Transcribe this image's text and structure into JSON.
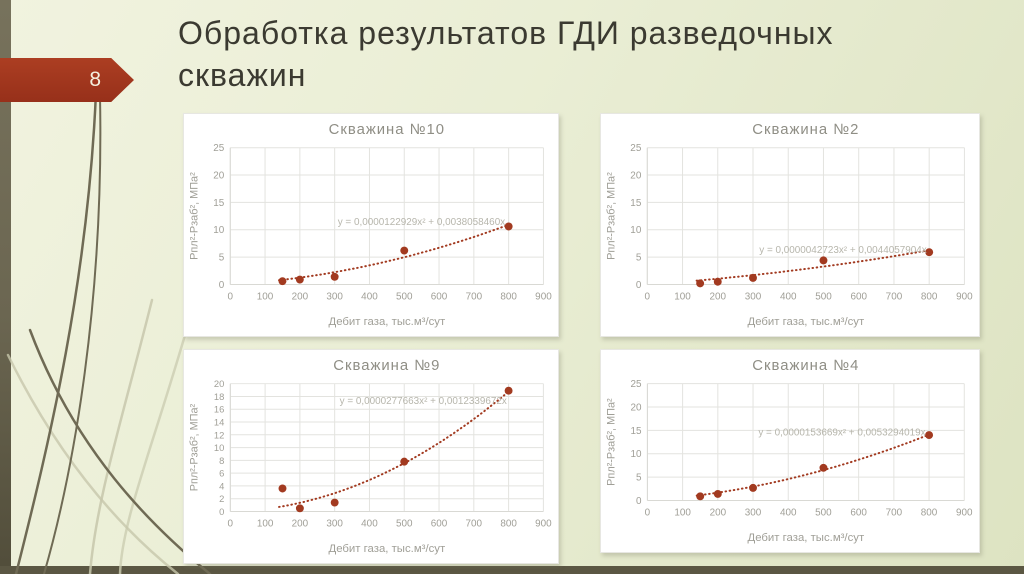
{
  "slide": {
    "number": "8",
    "title": "Обработка результатов ГДИ разведочных скважин"
  },
  "colors": {
    "accent_red": "#a23a20",
    "background": "#e9edd3",
    "olive_strip": "#6b6651",
    "bottom_bar": "#5b5743",
    "grid": "#e3e3df",
    "tick_text": "#a09f97",
    "chart_title_text": "#8f8e85",
    "equation_text": "#b7b6ac"
  },
  "chart_data": [
    {
      "type": "scatter",
      "title": "Скважина №10",
      "xlabel": "Дебит газа, тыс.м³/сут",
      "ylabel": "Рпл²-Рзаб², МПа²",
      "x": [
        150,
        200,
        300,
        500,
        800
      ],
      "y": [
        0.6,
        0.9,
        1.4,
        6.2,
        10.6
      ],
      "equation": "y = 0,0000122929x² + 0,0038058460x",
      "trend": {
        "a": 1.22929e-05,
        "b": 0.003805846
      },
      "xlim": [
        0,
        900
      ],
      "xtick_step": 100,
      "ylim": [
        0,
        25
      ],
      "ytick_step": 5,
      "grid": true,
      "legend": false,
      "eq_anchor": {
        "x": 790,
        "y": 11.4
      },
      "marker_color": "#a23a20"
    },
    {
      "type": "scatter",
      "title": "Скважина №2",
      "xlabel": "Дебит газа, тыс.м³/сут",
      "ylabel": "Рпл²-Рзаб², МПа²",
      "x": [
        150,
        200,
        300,
        500,
        800
      ],
      "y": [
        0.2,
        0.5,
        1.2,
        4.4,
        5.9
      ],
      "equation": "y = 0,0000042723x² + 0,0044057904x",
      "trend": {
        "a": 4.2723e-06,
        "b": 0.0044057904
      },
      "xlim": [
        0,
        900
      ],
      "xtick_step": 100,
      "ylim": [
        0,
        25
      ],
      "ytick_step": 5,
      "grid": true,
      "legend": false,
      "eq_anchor": {
        "x": 793,
        "y": 6.3
      },
      "marker_color": "#a23a20"
    },
    {
      "type": "scatter",
      "title": "Скважина №9",
      "xlabel": "Дебит газа, тыс.м³/сут",
      "ylabel": "Рпл²-Рзаб², МПа²",
      "x": [
        150,
        200,
        300,
        500,
        800
      ],
      "y": [
        3.6,
        0.5,
        1.4,
        7.8,
        18.9
      ],
      "equation": "y = 0,0000277663x² + 0,0012339672x",
      "trend": {
        "a": 2.77663e-05,
        "b": 0.0012339672
      },
      "xlim": [
        0,
        900
      ],
      "xtick_step": 100,
      "ylim": [
        0,
        20
      ],
      "ytick_step": 2,
      "grid": true,
      "legend": false,
      "eq_anchor": {
        "x": 795,
        "y": 17.3
      },
      "marker_color": "#a23a20"
    },
    {
      "type": "scatter",
      "title": "Скважина №4",
      "xlabel": "Дебит газа, тыс.м³/сут",
      "ylabel": "Рпл²-Рзаб², МПа²",
      "x": [
        150,
        200,
        300,
        500,
        800
      ],
      "y": [
        0.9,
        1.4,
        2.7,
        7.0,
        14.0
      ],
      "equation": "y = 0,0000153669x² + 0,0053294019x",
      "trend": {
        "a": 1.53669e-05,
        "b": 0.0053294019
      },
      "xlim": [
        0,
        900
      ],
      "xtick_step": 100,
      "ylim": [
        0,
        25
      ],
      "ytick_step": 5,
      "grid": true,
      "legend": false,
      "eq_anchor": {
        "x": 790,
        "y": 14.5
      },
      "marker_color": "#a23a20"
    }
  ]
}
